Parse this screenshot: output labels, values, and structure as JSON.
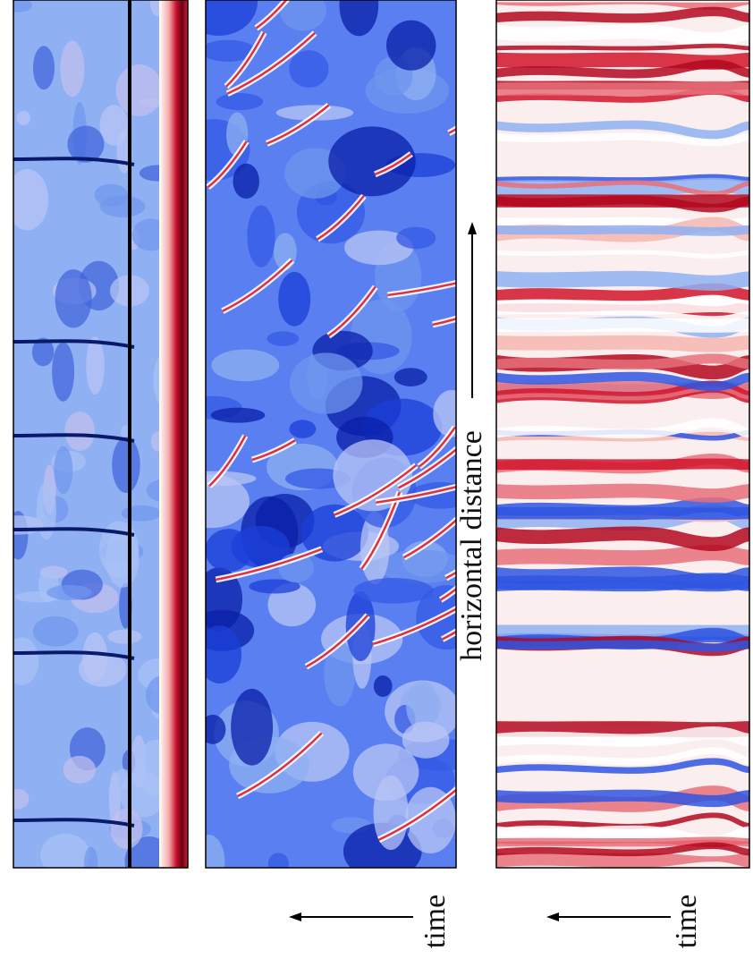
{
  "labels": {
    "horizontal_distance": "horizontal distance",
    "time_left": "time",
    "time_right": "time"
  }
}
